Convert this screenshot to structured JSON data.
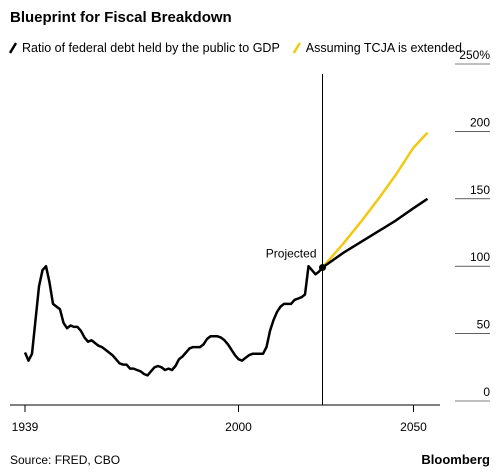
{
  "chart_data": {
    "type": "line",
    "title": "Blueprint for Fiscal Breakdown",
    "series": [
      {
        "name": "Ratio of federal debt held by the public to GDP",
        "color": "#000000",
        "x": [
          1939,
          1940,
          1941,
          1942,
          1943,
          1944,
          1945,
          1946,
          1947,
          1948,
          1949,
          1950,
          1951,
          1952,
          1953,
          1954,
          1955,
          1956,
          1957,
          1958,
          1959,
          1960,
          1961,
          1962,
          1963,
          1964,
          1965,
          1966,
          1967,
          1968,
          1969,
          1970,
          1971,
          1972,
          1973,
          1974,
          1975,
          1976,
          1977,
          1978,
          1979,
          1980,
          1981,
          1982,
          1983,
          1984,
          1985,
          1986,
          1987,
          1988,
          1989,
          1990,
          1991,
          1992,
          1993,
          1994,
          1995,
          1996,
          1997,
          1998,
          1999,
          2000,
          2001,
          2002,
          2003,
          2004,
          2005,
          2006,
          2007,
          2008,
          2009,
          2010,
          2011,
          2012,
          2013,
          2014,
          2015,
          2016,
          2017,
          2018,
          2019,
          2020,
          2021,
          2022,
          2023,
          2024,
          2030,
          2035,
          2040,
          2045,
          2050,
          2054
        ],
        "values": [
          36,
          30,
          35,
          60,
          85,
          97,
          100,
          88,
          72,
          70,
          68,
          58,
          54,
          56,
          55,
          55,
          52,
          47,
          44,
          45,
          43,
          41,
          40,
          38,
          36,
          34,
          31,
          28,
          27,
          27,
          24,
          24,
          23,
          22,
          20,
          19,
          22,
          25,
          26,
          25,
          23,
          24,
          23,
          26,
          31,
          33,
          36,
          39,
          40,
          40,
          40,
          42,
          46,
          48,
          48,
          48,
          47,
          45,
          42,
          38,
          34,
          31,
          30,
          32,
          34,
          35,
          35,
          35,
          35,
          40,
          52,
          60,
          66,
          70,
          72,
          72,
          72,
          75,
          76,
          77,
          79,
          100,
          97,
          94,
          96,
          99,
          110,
          118,
          126,
          134,
          143,
          150
        ]
      },
      {
        "name": "Assuming TCJA is extended",
        "color": "#f2c811",
        "x": [
          2024,
          2030,
          2035,
          2040,
          2045,
          2050,
          2054
        ],
        "values": [
          99,
          117,
          133,
          150,
          168,
          188,
          199
        ]
      }
    ],
    "xlim": [
      1939,
      2057
    ],
    "xticks": [
      1939,
      2000,
      2050
    ],
    "ylim": [
      0,
      250
    ],
    "yticks": [
      0,
      50,
      100,
      150,
      200,
      {
        "value": 250,
        "label": "250%"
      }
    ],
    "annotations": [
      {
        "text": "Projected",
        "x": 2024,
        "y": 99
      }
    ],
    "source": "Source: FRED, CBO",
    "brand": "Bloomberg"
  }
}
